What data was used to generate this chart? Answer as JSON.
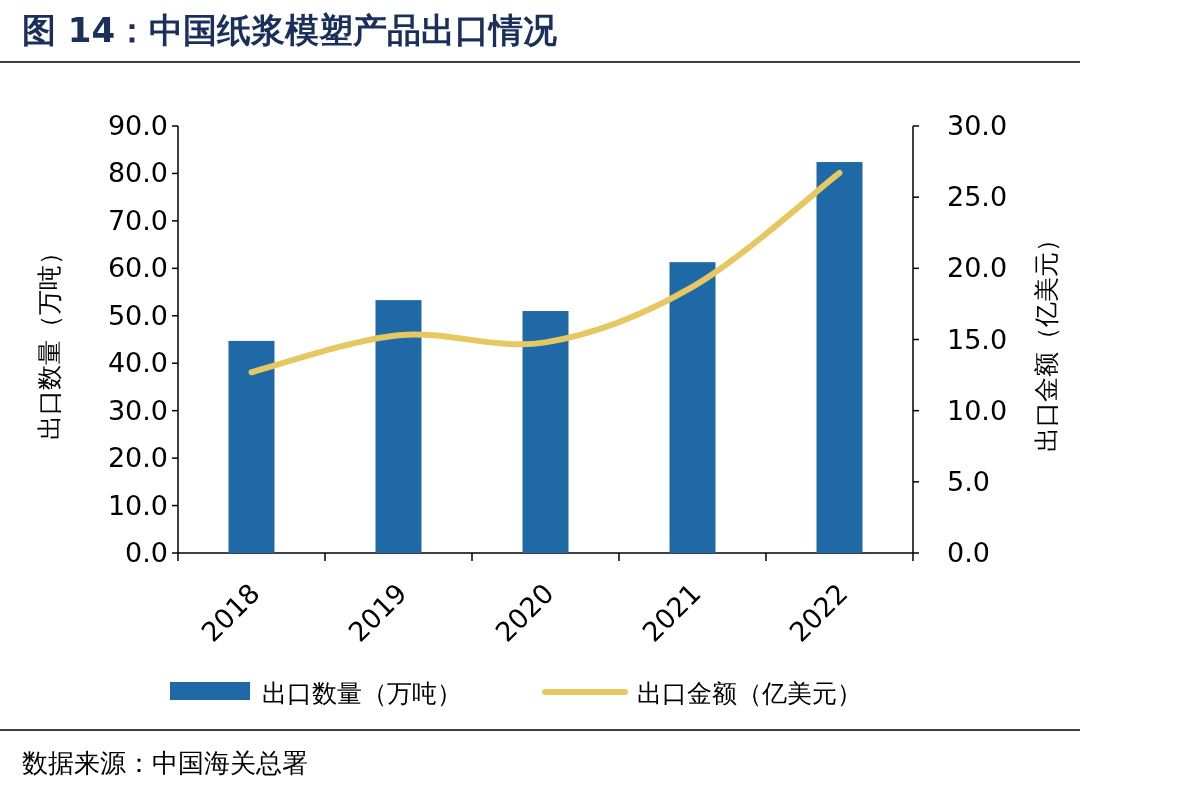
{
  "chart_data": {
    "type": "bar",
    "title": "图 14：中国纸浆模塑产品出口情况",
    "categories": [
      "2018",
      "2019",
      "2020",
      "2021",
      "2022"
    ],
    "series": [
      {
        "name": "出口数量（万吨）",
        "color": "#1f6aa6",
        "values": [
          44.7,
          53.3,
          51.0,
          61.3,
          82.4
        ]
      },
      {
        "name": "出口金额（亿美元）",
        "type": "line",
        "axis": "y2",
        "color": "#e6c862",
        "values": [
          12.7,
          15.3,
          14.8,
          18.7,
          26.7
        ]
      }
    ],
    "ylabel": "出口数量（万吨）",
    "y2label": "出口金额（亿美元）",
    "ylim": [
      0,
      90
    ],
    "yticks": [
      {
        "value": 0,
        "label": "0.0"
      },
      {
        "value": 10,
        "label": "10.0"
      },
      {
        "value": 20,
        "label": "20.0"
      },
      {
        "value": 30,
        "label": "30.0"
      },
      {
        "value": 40,
        "label": "40.0"
      },
      {
        "value": 50,
        "label": "50.0"
      },
      {
        "value": 60,
        "label": "60.0"
      },
      {
        "value": 70,
        "label": "70.0"
      },
      {
        "value": 80,
        "label": "80.0"
      },
      {
        "value": 90,
        "label": "90.0"
      }
    ],
    "y2lim": [
      0,
      30
    ],
    "y2ticks": [
      {
        "value": 0,
        "label": "0.0"
      },
      {
        "value": 5,
        "label": "5.0"
      },
      {
        "value": 10,
        "label": "10.0"
      },
      {
        "value": 15,
        "label": "15.0"
      },
      {
        "value": 20,
        "label": "20.0"
      },
      {
        "value": 25,
        "label": "25.0"
      },
      {
        "value": 30,
        "label": "30.0"
      }
    ],
    "legend": "bottom",
    "grid": false,
    "annotations": [
      "数据来源：中国海关总署"
    ]
  }
}
